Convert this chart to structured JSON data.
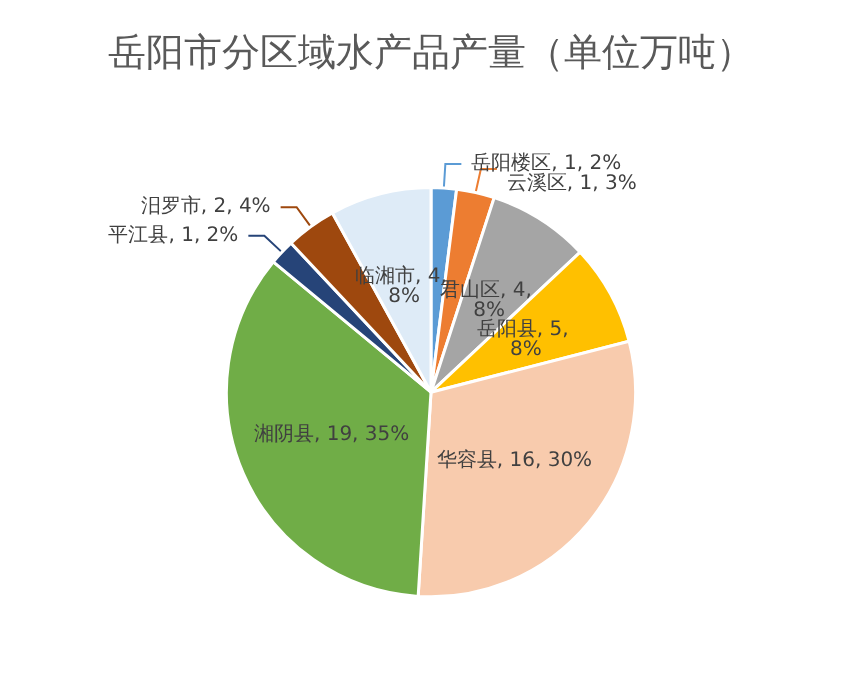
{
  "chart_data": {
    "type": "pie",
    "title": "岳阳市分区域水产品产量（单位万吨）",
    "categories": [
      "岳阳楼区",
      "云溪区",
      "君山区",
      "岳阳县",
      "华容县",
      "湘阴县",
      "平江县",
      "汨罗市",
      "临湘市"
    ],
    "values": [
      2,
      3,
      8,
      8,
      30,
      35,
      2,
      4,
      8
    ],
    "colors": [
      "#5b9bd5",
      "#ed7d31",
      "#a5a5a5",
      "#ffc000",
      "#f8cbad",
      "#70ad47",
      "#264478",
      "#9e480e",
      "#deebf7"
    ],
    "value_labels": [
      "1, 2%",
      "1, 3%",
      "4, 8%",
      "5, 8%",
      "16, 30%",
      "19, 35%",
      "1, 2%",
      "2, 4%",
      "4, 8%"
    ]
  }
}
